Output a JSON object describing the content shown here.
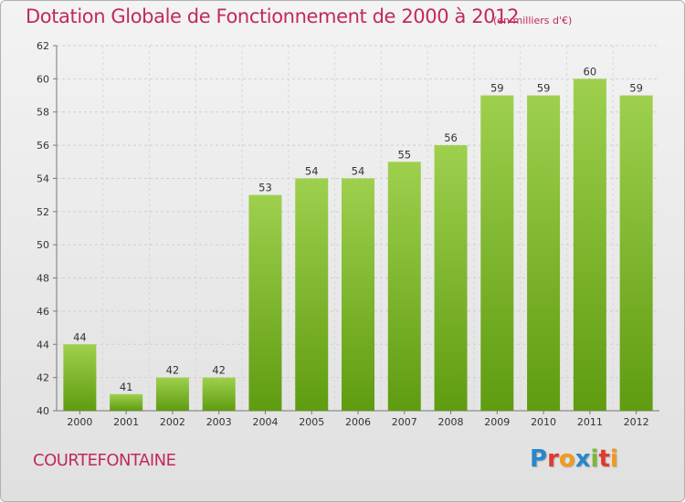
{
  "header": {
    "title": "Dotation Globale de Fonctionnement de 2000 à 2012",
    "unit": "(en milliers d'€)"
  },
  "footer": {
    "commune": "COURTEFONTAINE",
    "logo_text": "Proxiti"
  },
  "colors": {
    "title": "#c12a5a",
    "bar_top": "#9ed04e",
    "bar_bottom": "#5f9c10",
    "logo_letters": [
      "#2a86c9",
      "#e03a2f",
      "#f29a1a",
      "#2a86c9",
      "#7cb83a",
      "#e03a2f",
      "#f29a1a"
    ]
  },
  "chart_data": {
    "type": "bar",
    "categories": [
      "2000",
      "2001",
      "2002",
      "2003",
      "2004",
      "2005",
      "2006",
      "2007",
      "2008",
      "2009",
      "2010",
      "2011",
      "2012"
    ],
    "values": [
      44,
      41,
      42,
      42,
      53,
      54,
      54,
      55,
      56,
      59,
      59,
      60,
      59
    ],
    "data_labels": [
      "44",
      "41",
      "42",
      "42",
      "53",
      "54",
      "54",
      "55",
      "56",
      "59",
      "59",
      "60",
      "59"
    ],
    "ylim": [
      40,
      62
    ],
    "yticks": [
      40,
      42,
      44,
      46,
      48,
      50,
      52,
      54,
      56,
      58,
      60,
      62
    ],
    "grid": true,
    "title": "Dotation Globale de Fonctionnement de 2000 à 2012",
    "xlabel": "",
    "ylabel": ""
  }
}
